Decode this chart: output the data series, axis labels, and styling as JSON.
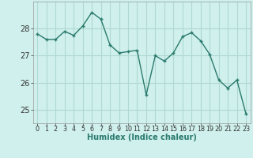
{
  "x": [
    0,
    1,
    2,
    3,
    4,
    5,
    6,
    7,
    8,
    9,
    10,
    11,
    12,
    13,
    14,
    15,
    16,
    17,
    18,
    19,
    20,
    21,
    22,
    23
  ],
  "y": [
    27.8,
    27.6,
    27.6,
    27.9,
    27.75,
    28.1,
    28.6,
    28.35,
    27.4,
    27.1,
    27.15,
    27.2,
    25.55,
    27.0,
    26.8,
    27.1,
    27.7,
    27.85,
    27.55,
    27.05,
    26.1,
    25.8,
    26.1,
    24.85
  ],
  "line_color": "#2a7a6e",
  "bg_color": "#cff0ec",
  "grid_color": "#b0d8d4",
  "xlabel": "Humidex (Indice chaleur)",
  "ylim": [
    24.5,
    29.0
  ],
  "yticks": [
    25,
    26,
    27,
    28
  ],
  "xlim": [
    -0.5,
    23.5
  ],
  "xlabel_color": "#2a7a6e",
  "tick_color": "#333333",
  "xlabel_fontsize": 7.0,
  "ytick_fontsize": 7.0,
  "xtick_fontsize": 5.8
}
